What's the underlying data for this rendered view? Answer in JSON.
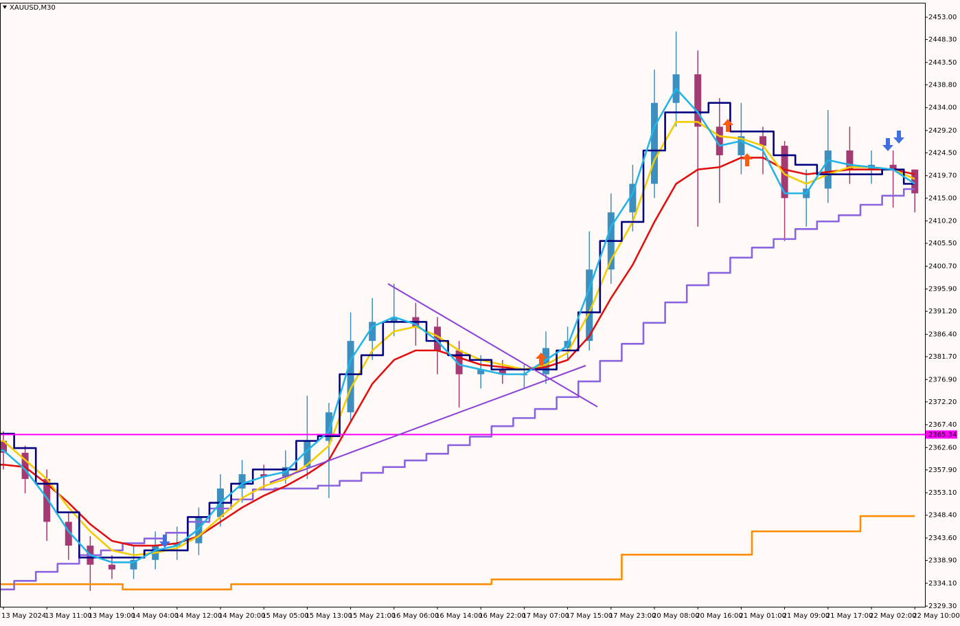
{
  "chart_data": {
    "type": "candlestick",
    "title": "XAUUSD,M30",
    "categories": [
      "13 May 2024",
      null,
      "13 May 11:00",
      null,
      "13 May 19:00",
      null,
      "14 May 04:00",
      null,
      "14 May 12:00",
      null,
      "14 May 20:00",
      null,
      "15 May 05:00",
      null,
      "15 May 13:00",
      null,
      "15 May 21:00",
      null,
      "16 May 06:00",
      null,
      "16 May 14:00",
      null,
      "16 May 22:00",
      null,
      "17 May 07:00",
      null,
      "17 May 15:00",
      null,
      "17 May 23:00",
      null,
      "20 May 08:00",
      null,
      "20 May 16:00",
      null,
      "21 May 01:00",
      null,
      "21 May 09:00",
      null,
      "21 May 17:00",
      null,
      "22 May 02:00",
      null,
      "22 May 10:00"
    ],
    "open": [
      2364,
      2361.5,
      2356,
      2347,
      2342,
      2338,
      2337,
      2339,
      2342,
      2342.5,
      2348,
      2354,
      2357,
      2356.5,
      2358.5,
      2364,
      2370,
      2385,
      2389,
      2390,
      2388,
      2383,
      2378,
      2379,
      2378,
      2378,
      2383.5,
      2385,
      2400,
      2412,
      2418,
      2435,
      2441,
      2430,
      2424,
      2428,
      2426,
      2415,
      2417,
      2425,
      2421,
      2422,
      2421
    ],
    "high": [
      2366,
      2363,
      2358,
      2349,
      2344,
      2340,
      2342,
      2345,
      2346,
      2350,
      2357,
      2360,
      2359,
      2362,
      2373.5,
      2372,
      2391,
      2394,
      2397,
      2393,
      2390,
      2385,
      2382,
      2381,
      2380,
      2387,
      2388,
      2408,
      2416,
      2422,
      2442,
      2450,
      2446,
      2436,
      2435,
      2430,
      2427,
      2421,
      2433.5,
      2430,
      2425,
      2425,
      2421
    ],
    "low": [
      2358,
      2353,
      2343,
      2339,
      2332.5,
      2335,
      2335,
      2337,
      2339,
      2340,
      2346,
      2351,
      2354,
      2355,
      2356,
      2352,
      2368,
      2381,
      2386,
      2384,
      2378,
      2371,
      2375,
      2376,
      2375,
      2376,
      2381,
      2383,
      2397,
      2408,
      2415,
      2430,
      2409,
      2414,
      2420,
      2420,
      2406,
      2409,
      2414,
      2418,
      2418,
      2413,
      2412
    ],
    "close": [
      2361.5,
      2356,
      2347,
      2342,
      2338,
      2337,
      2339,
      2342,
      2342.5,
      2348,
      2354,
      2357,
      2356.5,
      2358.5,
      2364,
      2370,
      2385,
      2389,
      2390,
      2388,
      2383,
      2378,
      2379,
      2378,
      2378,
      2383.5,
      2385,
      2400,
      2412,
      2418,
      2435,
      2441,
      2430,
      2424,
      2428,
      2426,
      2415,
      2417,
      2425,
      2421,
      2422,
      2421,
      2416
    ],
    "up_color": "#3d8fbf",
    "down_color": "#a33a73",
    "series": [
      {
        "color": "#ff8c00",
        "style": "step",
        "values": [
          2333.9,
          2333.9,
          2333.9,
          2333.9,
          2333.9,
          2333.9,
          2332.8,
          2332.8,
          2332.8,
          2332.8,
          2332.8,
          2333.9,
          2333.9,
          2333.9,
          2333.9,
          2333.9,
          2333.9,
          2333.9,
          2333.9,
          2333.9,
          2333.9,
          2333.9,
          2333.9,
          2334.9,
          2334.9,
          2334.9,
          2334.9,
          2334.9,
          2334.9,
          2340.1,
          2340.1,
          2340.1,
          2340.1,
          2340.1,
          2340.1,
          2345,
          2345,
          2345,
          2345,
          2345,
          2348.2,
          2348.2,
          2348.2
        ]
      },
      {
        "color": "#8a63e0",
        "style": "step",
        "values": [
          2332.8,
          2334.6,
          2336.5,
          2338.2,
          2340,
          2341,
          2342.5,
          2343.5,
          2344.7,
          2347,
          2349.8,
          2351.7,
          2353.8,
          2354,
          2354,
          2354.6,
          2355.6,
          2357.3,
          2358.5,
          2359.9,
          2361.3,
          2363.1,
          2364.9,
          2367.1,
          2368.8,
          2370.7,
          2373.2,
          2376.5,
          2380.8,
          2384.4,
          2388.8,
          2393.1,
          2396.7,
          2399.3,
          2402.5,
          2404.6,
          2406.4,
          2408.5,
          2410.1,
          2411.4,
          2413.6,
          2415.5,
          2416.9
        ]
      },
      {
        "color": "#e01010",
        "style": "line",
        "values": [
          2359,
          2358.5,
          2355,
          2351,
          2346.5,
          2343,
          2342,
          2342,
          2342.5,
          2344,
          2347,
          2350,
          2352.5,
          2354.5,
          2357,
          2360,
          2368,
          2376,
          2381,
          2383,
          2383,
          2381.5,
          2380,
          2379.5,
          2379,
          2379.5,
          2381,
          2386,
          2394,
          2401,
          2410,
          2418,
          2421,
          2421.5,
          2423.5,
          2423.5,
          2421,
          2420,
          2420.5,
          2421,
          2421,
          2421,
          2420
        ]
      },
      {
        "color": "#f2cc00",
        "style": "line",
        "values": [
          2364,
          2360,
          2356,
          2350,
          2345,
          2341,
          2340,
          2340.5,
          2341.5,
          2344,
          2348,
          2352,
          2354.5,
          2356,
          2359,
          2363,
          2375,
          2383,
          2387,
          2388,
          2386,
          2383,
          2381,
          2380,
          2379,
          2380,
          2382.5,
          2391,
          2402,
          2410,
          2423,
          2431,
          2431,
          2428,
          2427.5,
          2426,
          2420,
          2418,
          2420,
          2421.5,
          2421.5,
          2421,
          2419
        ]
      },
      {
        "color": "#000080",
        "style": "step",
        "values": [
          2365.5,
          2362.5,
          2355,
          2349,
          2339.5,
          2339.5,
          2339.5,
          2341,
          2341,
          2348,
          2351,
          2355,
          2358,
          2358,
          2364,
          2365,
          2378,
          2382,
          2389,
          2389,
          2385,
          2382,
          2381,
          2379,
          2379,
          2379,
          2383,
          2391,
          2406,
          2410,
          2425,
          2433,
          2433,
          2435,
          2429,
          2429,
          2424,
          2422,
          2420,
          2420,
          2420,
          2421,
          2418
        ]
      },
      {
        "color": "#22b4e6",
        "style": "line",
        "values": [
          2362,
          2358,
          2352,
          2345,
          2340,
          2338.5,
          2338.5,
          2341,
          2342,
          2345.5,
          2351,
          2355,
          2356.5,
          2357.5,
          2362,
          2366,
          2381,
          2388,
          2390,
          2388.5,
          2385,
          2380,
          2379,
          2378,
          2378,
          2381,
          2384,
          2396,
          2409,
          2416,
          2430,
          2438,
          2433,
          2426,
          2427,
          2425,
          2416,
          2416,
          2423,
          2422,
          2421.5,
          2421,
          2418
        ]
      }
    ],
    "hline": {
      "value": 2365.34,
      "label": 2365.34,
      "color": "#ff00ff"
    },
    "ylim": [
      2329.16,
      2455.89
    ],
    "yticks": [
      {
        "value": 2453,
        "label": "2453.00"
      },
      {
        "value": 2448.3,
        "label": "2448.30"
      },
      {
        "value": 2443.5,
        "label": "2443.50"
      },
      {
        "value": 2438.8,
        "label": "2438.80"
      },
      {
        "value": 2434,
        "label": "2434.00"
      },
      {
        "value": 2429.2,
        "label": "2429.20"
      },
      {
        "value": 2424.5,
        "label": "2424.50"
      },
      {
        "value": 2419.7,
        "label": "2419.70"
      },
      {
        "value": 2415,
        "label": "2415.00"
      },
      {
        "value": 2410.2,
        "label": "2410.20"
      },
      {
        "value": 2405.5,
        "label": "2405.50"
      },
      {
        "value": 2400.7,
        "label": "2400.70"
      },
      {
        "value": 2395.9,
        "label": "2395.90"
      },
      {
        "value": 2391.2,
        "label": "2391.20"
      },
      {
        "value": 2386.4,
        "label": "2386.40"
      },
      {
        "value": 2381.7,
        "label": "2381.70"
      },
      {
        "value": 2376.9,
        "label": "2376.90"
      },
      {
        "value": 2372.2,
        "label": "2372.20"
      },
      {
        "value": 2367.4,
        "label": "2367.40"
      },
      {
        "value": 2362.6,
        "label": "2362.60"
      },
      {
        "value": 2357.9,
        "label": "2357.90"
      },
      {
        "value": 2353.1,
        "label": "2353.10"
      },
      {
        "value": 2348.4,
        "label": "2348.40"
      },
      {
        "value": 2343.6,
        "label": "2343.60"
      },
      {
        "value": 2338.9,
        "label": "2338.90"
      },
      {
        "value": 2334.1,
        "label": "2334.10"
      },
      {
        "value": 2329.3,
        "label": "2329.30"
      }
    ],
    "grid": false
  }
}
